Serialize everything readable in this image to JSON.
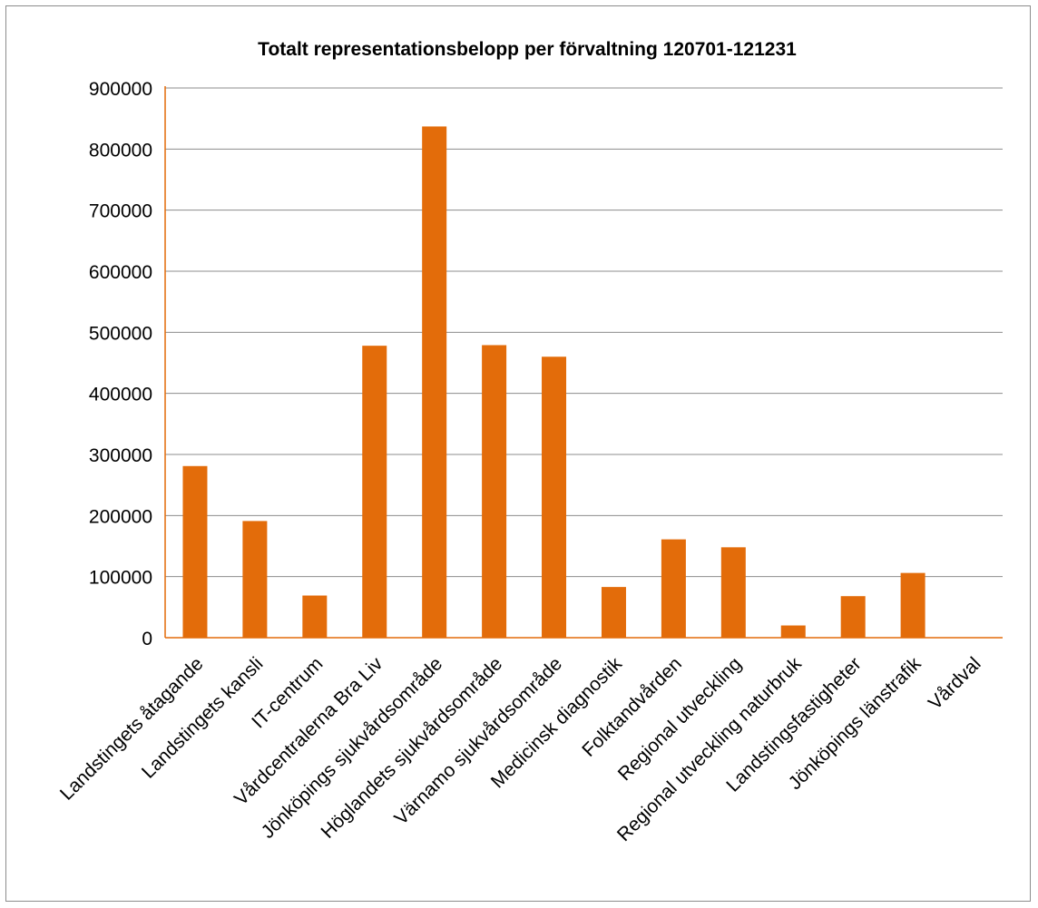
{
  "chart_data": {
    "type": "bar",
    "title": "Totalt representationsbelopp per förvaltning 120701-121231",
    "xlabel": "",
    "ylabel": "",
    "ylim": [
      0,
      900000
    ],
    "yticks": [
      0,
      100000,
      200000,
      300000,
      400000,
      500000,
      600000,
      700000,
      800000,
      900000
    ],
    "grid": true,
    "legend": "none",
    "bar_color": "#E36C0A",
    "gridline_color": "#8c8c8c",
    "axis_color": "#E36C0A",
    "categories": [
      "Landstingets åtagande",
      "Landstingets kansli",
      "IT-centrum",
      "Vårdcentralerna Bra Liv",
      "Jönköpings sjukvårdsområde",
      "Höglandets sjukvårdsområde",
      "Värnamo sjukvårdsområde",
      "Medicinsk diagnostik",
      "Folktandvården",
      "Regional utveckling",
      "Regional utveckling naturbruk",
      "Landstingsfastigheter",
      "Jönköpings länstrafik",
      "Vårdval"
    ],
    "values": [
      281000,
      191000,
      69000,
      478000,
      837000,
      479000,
      460000,
      83000,
      161000,
      148000,
      20000,
      68000,
      106000,
      0
    ]
  }
}
